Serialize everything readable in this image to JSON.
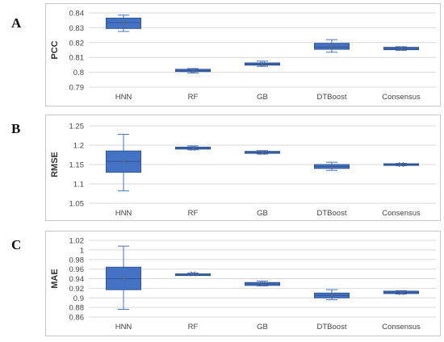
{
  "figure": {
    "panel_letters": [
      "A",
      "B",
      "C"
    ]
  },
  "colors": {
    "box_fill": "#4472c4",
    "box_stroke": "#2f5597",
    "whisker": "#4472c4",
    "grid": "#d9d9d9",
    "frame": "#c8c8c8",
    "mean_marker": "#5a6b8c"
  },
  "chart_data": [
    {
      "type": "box",
      "panel": "A",
      "ylabel": "PCC",
      "ylim": [
        0.79,
        0.84
      ],
      "yticks": [
        0.79,
        0.8,
        0.81,
        0.82,
        0.83,
        0.84
      ],
      "ytick_labels": [
        "0.79",
        "0.8",
        "0.81",
        "0.82",
        "0.83",
        "0.84"
      ],
      "grid": true,
      "categories": [
        "HNN",
        "RF",
        "GB",
        "DTBoost",
        "Consensus"
      ],
      "boxes": [
        {
          "min": 0.8275,
          "q1": 0.8295,
          "median": 0.8335,
          "q3": 0.8365,
          "max": 0.8385,
          "mean": 0.8335
        },
        {
          "min": 0.7995,
          "q1": 0.8005,
          "median": 0.801,
          "q3": 0.802,
          "max": 0.8025,
          "mean": 0.801
        },
        {
          "min": 0.804,
          "q1": 0.8048,
          "median": 0.8055,
          "q3": 0.8063,
          "max": 0.8075,
          "mean": 0.8055
        },
        {
          "min": 0.8135,
          "q1": 0.8155,
          "median": 0.817,
          "q3": 0.8195,
          "max": 0.822,
          "mean": 0.817
        },
        {
          "min": 0.8148,
          "q1": 0.8152,
          "median": 0.816,
          "q3": 0.8168,
          "max": 0.8172,
          "mean": 0.816
        }
      ]
    },
    {
      "type": "box",
      "panel": "B",
      "ylabel": "RMSE",
      "ylim": [
        1.05,
        1.25
      ],
      "yticks": [
        1.05,
        1.1,
        1.15,
        1.2,
        1.25
      ],
      "ytick_labels": [
        "1.05",
        "1.1",
        "1.15",
        "1.2",
        "1.25"
      ],
      "grid": true,
      "categories": [
        "HNN",
        "RF",
        "GB",
        "DTBoost",
        "Consensus"
      ],
      "boxes": [
        {
          "min": 1.082,
          "q1": 1.13,
          "median": 1.158,
          "q3": 1.185,
          "max": 1.228,
          "mean": 1.158
        },
        {
          "min": 1.188,
          "q1": 1.19,
          "median": 1.192,
          "q3": 1.195,
          "max": 1.198,
          "mean": 1.192
        },
        {
          "min": 1.177,
          "q1": 1.179,
          "median": 1.181,
          "q3": 1.184,
          "max": 1.186,
          "mean": 1.181
        },
        {
          "min": 1.135,
          "q1": 1.14,
          "median": 1.145,
          "q3": 1.15,
          "max": 1.156,
          "mean": 1.145
        },
        {
          "min": 1.147,
          "q1": 1.148,
          "median": 1.15,
          "q3": 1.152,
          "max": 1.153,
          "mean": 1.15
        }
      ]
    },
    {
      "type": "box",
      "panel": "C",
      "ylabel": "MAE",
      "ylim": [
        0.86,
        1.02
      ],
      "yticks": [
        0.86,
        0.88,
        0.9,
        0.92,
        0.94,
        0.96,
        0.98,
        1.0,
        1.02
      ],
      "ytick_labels": [
        "0.86",
        "0.88",
        "0.9",
        "0.92",
        "0.94",
        "0.96",
        "0.98",
        "1",
        "1.02"
      ],
      "grid": true,
      "categories": [
        "HNN",
        "RF",
        "GB",
        "DTBoost",
        "Consensus"
      ],
      "boxes": [
        {
          "min": 0.876,
          "q1": 0.917,
          "median": 0.94,
          "q3": 0.964,
          "max": 1.008,
          "mean": 0.94
        },
        {
          "min": 0.947,
          "q1": 0.948,
          "median": 0.949,
          "q3": 0.95,
          "max": 0.952,
          "mean": 0.95
        },
        {
          "min": 0.925,
          "q1": 0.926,
          "median": 0.929,
          "q3": 0.932,
          "max": 0.935,
          "mean": 0.929
        },
        {
          "min": 0.896,
          "q1": 0.9,
          "median": 0.905,
          "q3": 0.91,
          "max": 0.917,
          "mean": 0.905
        },
        {
          "min": 0.908,
          "q1": 0.909,
          "median": 0.911,
          "q3": 0.914,
          "max": 0.915,
          "mean": 0.911
        }
      ]
    }
  ]
}
